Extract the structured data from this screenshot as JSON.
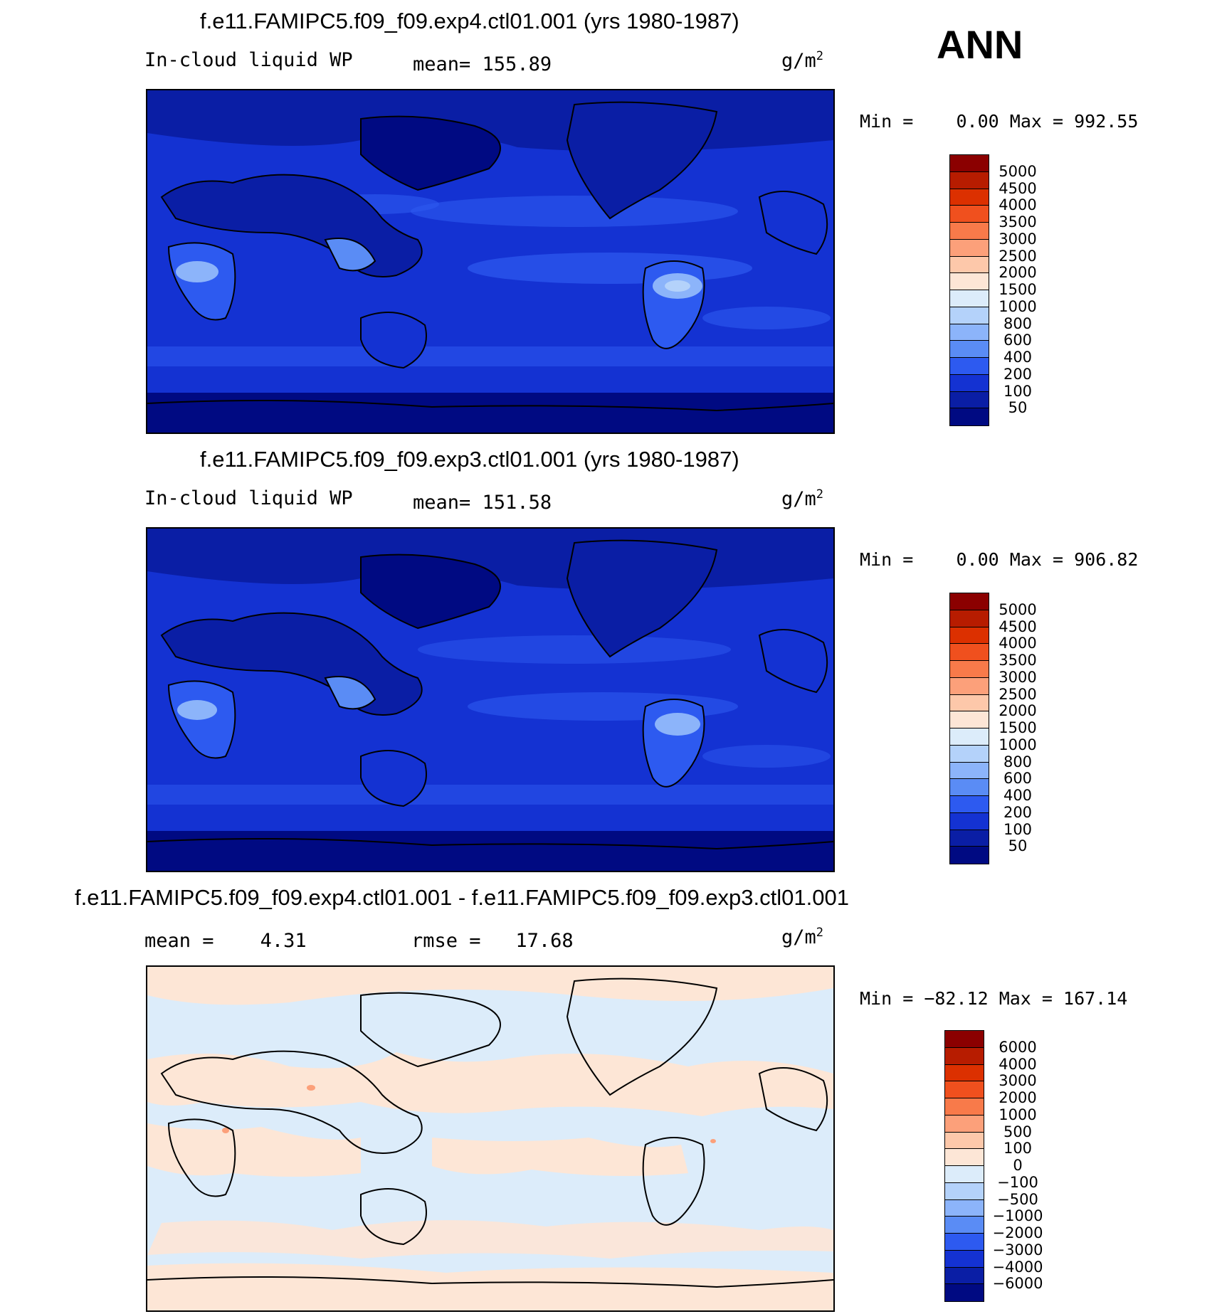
{
  "season": "ANN",
  "unit_base": "g/m",
  "unit_sup": "2",
  "panels": [
    {
      "title": "f.e11.FAMIPC5.f09_f09.exp4.ctl01.001 (yrs 1980-1987)",
      "field": "In-cloud liquid WP",
      "mean_label": "mean=",
      "mean_value": "155.89",
      "min_label": "Min =",
      "min_value": "0.00",
      "max_label": "Max =",
      "max_value": "992.55"
    },
    {
      "title": "f.e11.FAMIPC5.f09_f09.exp3.ctl01.001 (yrs 1980-1987)",
      "field": "In-cloud liquid WP",
      "mean_label": "mean=",
      "mean_value": "151.58",
      "min_label": "Min =",
      "min_value": "0.00",
      "max_label": "Max =",
      "max_value": "906.82"
    },
    {
      "title": "f.e11.FAMIPC5.f09_f09.exp4.ctl01.001 - f.e11.FAMIPC5.f09_f09.exp3.ctl01.001",
      "mean_label": "mean =",
      "mean_value": "4.31",
      "rmse_label": "rmse =",
      "rmse_value": "17.68",
      "min_label": "Min =",
      "min_value": "−82.12",
      "max_label": "Max =",
      "max_value": "167.14"
    }
  ],
  "colorbars": {
    "absolute": {
      "labels": [
        "5000",
        "4500",
        "4000",
        "3500",
        "3000",
        "2500",
        "2000",
        "1500",
        "1000",
        "800",
        "600",
        "400",
        "200",
        "100",
        "50"
      ],
      "colors": [
        "#8b0000",
        "#b71c00",
        "#dc3000",
        "#f0501e",
        "#f87a4a",
        "#fca07a",
        "#fdc8aa",
        "#fde6d6",
        "#dcecfa",
        "#b4d2fa",
        "#8cb4fa",
        "#5a8cf5",
        "#2d5af0",
        "#1432d2",
        "#0a1ea5",
        "#000a82"
      ]
    },
    "difference": {
      "labels": [
        "6000",
        "4000",
        "3000",
        "2000",
        "1000",
        "500",
        "100",
        "0",
        "−100",
        "−500",
        "−1000",
        "−2000",
        "−3000",
        "−4000",
        "−6000"
      ],
      "colors": [
        "#8b0000",
        "#b71c00",
        "#dc3000",
        "#f0501e",
        "#f87a4a",
        "#fca07a",
        "#fdc8aa",
        "#fde6d6",
        "#dcecfa",
        "#b4d2fa",
        "#8cb4fa",
        "#5a8cf5",
        "#2d5af0",
        "#1432d2",
        "#0a1ea5",
        "#000a82"
      ]
    }
  }
}
